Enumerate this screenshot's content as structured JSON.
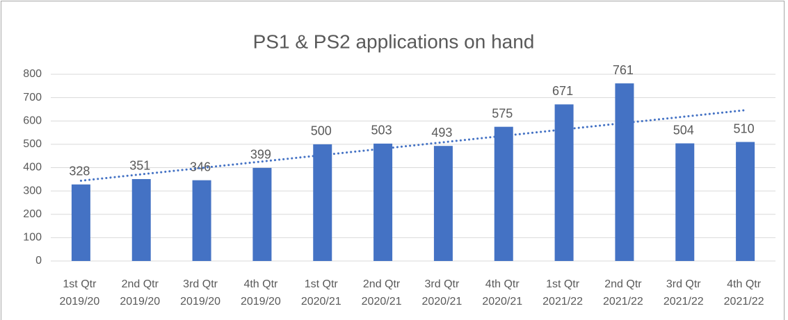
{
  "chart_data": {
    "type": "bar",
    "title": "PS1 & PS2 applications on hand",
    "categories": [
      [
        "1st Qtr",
        "2019/20"
      ],
      [
        "2nd Qtr",
        "2019/20"
      ],
      [
        "3rd Qtr",
        "2019/20"
      ],
      [
        "4th Qtr",
        "2019/20"
      ],
      [
        "1st Qtr",
        "2020/21"
      ],
      [
        "2nd Qtr",
        "2020/21"
      ],
      [
        "3rd Qtr",
        "2020/21"
      ],
      [
        "4th Qtr",
        "2020/21"
      ],
      [
        "1st Qtr",
        "2021/22"
      ],
      [
        "2nd Qtr",
        "2021/22"
      ],
      [
        "3rd Qtr",
        "2021/22"
      ],
      [
        "4th Qtr",
        "2021/22"
      ]
    ],
    "values": [
      328,
      351,
      346,
      399,
      500,
      503,
      493,
      575,
      671,
      761,
      504,
      510
    ],
    "color": "#4472c4",
    "trendline": "linear",
    "ylim": [
      0,
      800
    ],
    "yticks": [
      0,
      100,
      200,
      300,
      400,
      500,
      600,
      700,
      800
    ],
    "grid": true
  }
}
